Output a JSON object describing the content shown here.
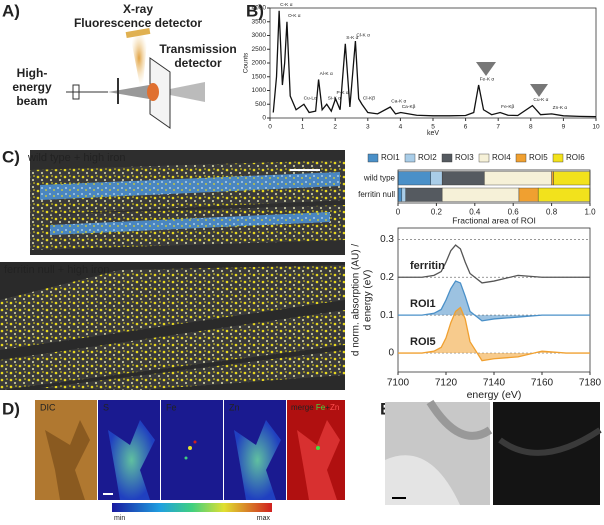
{
  "panel_labels": [
    "A)",
    "B)",
    "C)",
    "D)",
    "E)"
  ],
  "diagram": {
    "labels": [
      "X-ray",
      "Fluorescence detector",
      "Transmission",
      "detector",
      "High-",
      "energy",
      "beam"
    ]
  },
  "panel_c": {
    "top_label": "wild type + high iron",
    "bottom_label": "ferritin null + high iron"
  },
  "panel_d": {
    "labels": [
      "DIC",
      "S",
      "Fe",
      "Zn"
    ],
    "merge": [
      "merge",
      "Fe",
      "+",
      "Zn"
    ],
    "colorbar": [
      "min",
      "max"
    ]
  },
  "chart_data": [
    {
      "type": "line",
      "xlabel": "keV",
      "ylabel": "Counts",
      "xlim": [
        0,
        10
      ],
      "xticks": [
        0,
        1,
        2,
        3,
        4,
        5,
        6,
        7,
        8,
        9,
        10
      ],
      "ylim": [
        0,
        4000
      ],
      "yticks": [
        0,
        500,
        1000,
        1500,
        2000,
        2500,
        3000,
        3500,
        4000
      ],
      "grid": false,
      "x": [
        0.1,
        0.2,
        0.28,
        0.38,
        0.45,
        0.52,
        0.62,
        0.8,
        1.04,
        1.2,
        1.4,
        1.49,
        1.6,
        1.74,
        1.88,
        2.01,
        2.15,
        2.31,
        2.45,
        2.62,
        2.72,
        2.82,
        3.0,
        3.3,
        3.69,
        3.85,
        4.01,
        4.5,
        5.0,
        5.5,
        6.0,
        6.25,
        6.4,
        6.55,
        6.8,
        7.06,
        7.3,
        7.6,
        8.05,
        8.3,
        8.64,
        9.0,
        9.5,
        10
      ],
      "series": [
        {
          "color": "#111111",
          "values": [
            200,
            1500,
            3900,
            1200,
            2000,
            3500,
            800,
            300,
            500,
            200,
            250,
            1400,
            300,
            500,
            250,
            700,
            300,
            2700,
            400,
            2800,
            700,
            500,
            200,
            150,
            400,
            150,
            200,
            100,
            80,
            80,
            90,
            200,
            1200,
            300,
            120,
            200,
            100,
            90,
            450,
            120,
            150,
            80,
            60,
            50
          ]
        }
      ],
      "annotations": [
        {
          "text": "C-K α",
          "x": 0.28,
          "y": 3900
        },
        {
          "text": "O-K α",
          "x": 0.52,
          "y": 3500
        },
        {
          "text": "Cu-Lα",
          "x": 1.0,
          "y": 500
        },
        {
          "text": "Al-K α",
          "x": 1.49,
          "y": 1400
        },
        {
          "text": "Si-K α",
          "x": 1.74,
          "y": 500
        },
        {
          "text": "P-K α",
          "x": 2.01,
          "y": 700
        },
        {
          "text": "S-K α",
          "x": 2.31,
          "y": 2700
        },
        {
          "text": "Cl-K α",
          "x": 2.62,
          "y": 2800
        },
        {
          "text": "Cl-Kβ",
          "x": 2.82,
          "y": 500
        },
        {
          "text": "Ca-K α",
          "x": 3.69,
          "y": 400
        },
        {
          "text": "Ca-Kβ",
          "x": 4.01,
          "y": 200
        },
        {
          "text": "Fe-K α",
          "x": 6.4,
          "y": 1200
        },
        {
          "text": "Fe-Kβ",
          "x": 7.06,
          "y": 200
        },
        {
          "text": "Cu-K α",
          "x": 8.05,
          "y": 450
        },
        {
          "text": "Zn-K α",
          "x": 8.64,
          "y": 150
        }
      ]
    },
    {
      "type": "bar",
      "orientation": "horizontal",
      "stacked": true,
      "xlabel": "Fractional area of ROI",
      "categories": [
        "wild type",
        "ferritin null"
      ],
      "xlim": [
        0,
        1
      ],
      "xticks": [
        0,
        0.2,
        0.4,
        0.6,
        0.8,
        {
          "value": 1,
          "label": "1.0"
        }
      ],
      "series": [
        {
          "name": "ROI1",
          "color": "#4a90c8",
          "values": [
            0.17,
            0.02
          ]
        },
        {
          "name": "ROI2",
          "color": "#a9cde8",
          "values": [
            0.06,
            0.02
          ]
        },
        {
          "name": "ROI3",
          "color": "#555a60",
          "values": [
            0.22,
            0.19
          ]
        },
        {
          "name": "ROI4",
          "color": "#f6f1d8",
          "values": [
            0.35,
            0.4
          ]
        },
        {
          "name": "ROI5",
          "color": "#f0a030",
          "values": [
            0.01,
            0.1
          ]
        },
        {
          "name": "ROI6",
          "color": "#f2e21c",
          "values": [
            0.19,
            0.27
          ]
        }
      ]
    },
    {
      "type": "line",
      "xlabel": "energy (eV)",
      "ylabel": [
        "d norm. absorption (AU) /",
        "d energy (eV)"
      ],
      "xlim": [
        7100,
        7180
      ],
      "xticks": [
        7100,
        7120,
        7140,
        7160,
        7180
      ],
      "ylim": [
        -0.05,
        0.33
      ],
      "yticks": [
        0,
        0.1,
        0.2,
        0.3
      ],
      "grid": true,
      "x": [
        7100,
        7110,
        7115,
        7118,
        7120,
        7122,
        7124,
        7126,
        7128,
        7130,
        7135,
        7140,
        7150,
        7160,
        7170,
        7180
      ],
      "series": [
        {
          "name": "ferritin",
          "color": "#555555",
          "fill": false,
          "values": [
            0.2,
            0.2,
            0.205,
            0.215,
            0.24,
            0.27,
            0.285,
            0.275,
            0.24,
            0.21,
            0.185,
            0.19,
            0.205,
            0.2,
            0.2,
            0.2
          ]
        },
        {
          "name": "ROI1",
          "color": "#4a90c8",
          "fill": true,
          "values": [
            0.1,
            0.1,
            0.105,
            0.115,
            0.14,
            0.17,
            0.19,
            0.185,
            0.15,
            0.11,
            0.085,
            0.09,
            0.095,
            0.1,
            0.1,
            0.1
          ]
        },
        {
          "name": "ROI5",
          "color": "#f0a030",
          "fill": true,
          "values": [
            0,
            0,
            0.005,
            0.015,
            0.04,
            0.08,
            0.11,
            0.12,
            0.09,
            0.03,
            -0.02,
            -0.015,
            -0.01,
            0.005,
            0,
            0
          ]
        }
      ]
    }
  ]
}
